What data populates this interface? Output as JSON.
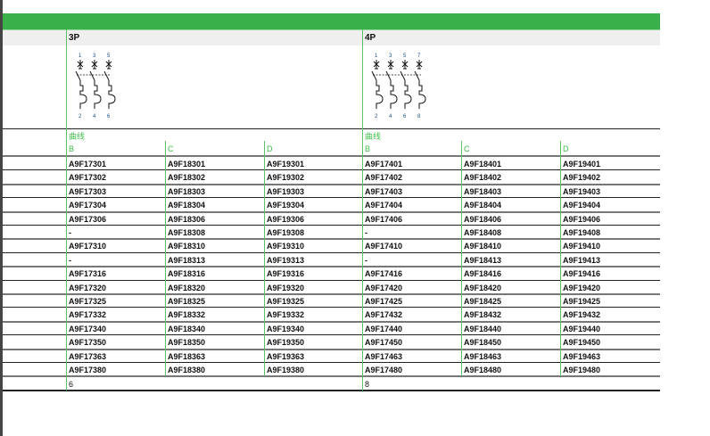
{
  "groups": [
    {
      "title": "3P",
      "terminals_top": [
        "1",
        "3",
        "5"
      ],
      "terminals_bottom": [
        "2",
        "4",
        "6"
      ],
      "curve_label": "曲线",
      "curves": [
        "B",
        "C",
        "D"
      ],
      "footer": "6",
      "rows": [
        [
          "A9F17301",
          "A9F18301",
          "A9F19301"
        ],
        [
          "A9F17302",
          "A9F18302",
          "A9F19302"
        ],
        [
          "A9F17303",
          "A9F18303",
          "A9F19303"
        ],
        [
          "A9F17304",
          "A9F18304",
          "A9F19304"
        ],
        [
          "A9F17306",
          "A9F18306",
          "A9F19306"
        ],
        [
          "-",
          "A9F18308",
          "A9F19308"
        ],
        [
          "A9F17310",
          "A9F18310",
          "A9F19310"
        ],
        [
          "-",
          "A9F18313",
          "A9F19313"
        ],
        [
          "A9F17316",
          "A9F18316",
          "A9F19316"
        ],
        [
          "A9F17320",
          "A9F18320",
          "A9F19320"
        ],
        [
          "A9F17325",
          "A9F18325",
          "A9F19325"
        ],
        [
          "A9F17332",
          "A9F18332",
          "A9F19332"
        ],
        [
          "A9F17340",
          "A9F18340",
          "A9F19340"
        ],
        [
          "A9F17350",
          "A9F18350",
          "A9F19350"
        ],
        [
          "A9F17363",
          "A9F18363",
          "A9F19363"
        ],
        [
          "A9F17380",
          "A9F18380",
          "A9F19380"
        ]
      ]
    },
    {
      "title": "4P",
      "terminals_top": [
        "1",
        "3",
        "5",
        "7"
      ],
      "terminals_bottom": [
        "2",
        "4",
        "6",
        "8"
      ],
      "curve_label": "曲线",
      "curves": [
        "B",
        "C",
        "D"
      ],
      "footer": "8",
      "rows": [
        [
          "A9F17401",
          "A9F18401",
          "A9F19401"
        ],
        [
          "A9F17402",
          "A9F18402",
          "A9F19402"
        ],
        [
          "A9F17403",
          "A9F18403",
          "A9F19403"
        ],
        [
          "A9F17404",
          "A9F18404",
          "A9F19404"
        ],
        [
          "A9F17406",
          "A9F18406",
          "A9F19406"
        ],
        [
          "-",
          "A9F18408",
          "A9F19408"
        ],
        [
          "A9F17410",
          "A9F18410",
          "A9F19410"
        ],
        [
          "-",
          "A9F18413",
          "A9F19413"
        ],
        [
          "A9F17416",
          "A9F18416",
          "A9F19416"
        ],
        [
          "A9F17420",
          "A9F18420",
          "A9F19420"
        ],
        [
          "A9F17425",
          "A9F18425",
          "A9F19425"
        ],
        [
          "A9F17432",
          "A9F18432",
          "A9F19432"
        ],
        [
          "A9F17440",
          "A9F18440",
          "A9F19440"
        ],
        [
          "A9F17450",
          "A9F18450",
          "A9F19450"
        ],
        [
          "A9F17463",
          "A9F18463",
          "A9F19463"
        ],
        [
          "A9F17480",
          "A9F18480",
          "A9F19480"
        ]
      ]
    }
  ],
  "colors": {
    "accent": "#39b04a",
    "curve_text": "#3fbf4a"
  }
}
